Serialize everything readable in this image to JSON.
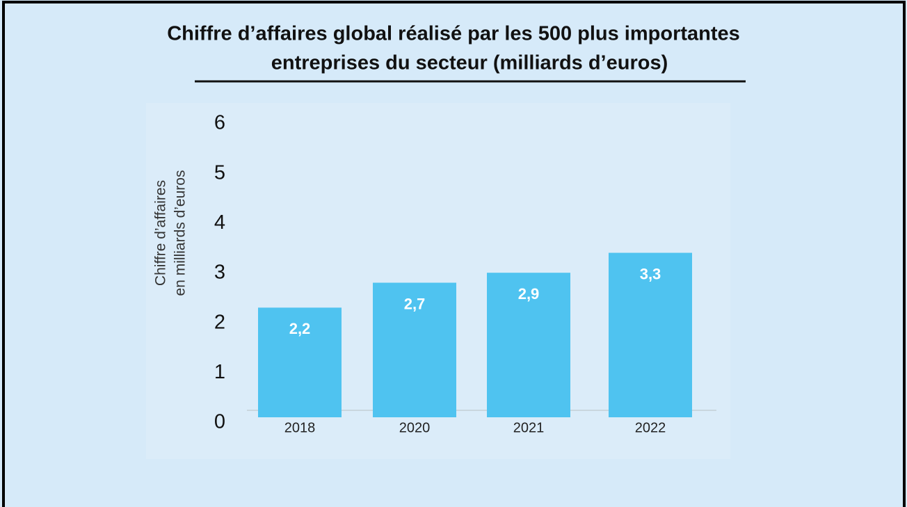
{
  "chart_data": {
    "type": "bar",
    "title": [
      "Chiffre d’affaires global réalisé par les 500 plus importantes",
      "entreprises du secteur (milliards d’euros)"
    ],
    "y_label": [
      "Chiffre d’affaires",
      "en milliards d’euros"
    ],
    "categories": [
      "2018",
      "2020",
      "2021",
      "2022"
    ],
    "values": [
      2.2,
      2.7,
      2.9,
      3.3
    ],
    "value_labels": [
      "2,2",
      "2,7",
      "2,9",
      "3,3"
    ],
    "color": "#4fc3f0",
    "ylim": [
      0,
      6
    ],
    "yticks": [
      0,
      1,
      2,
      3,
      4,
      5,
      6
    ],
    "grid": false
  }
}
